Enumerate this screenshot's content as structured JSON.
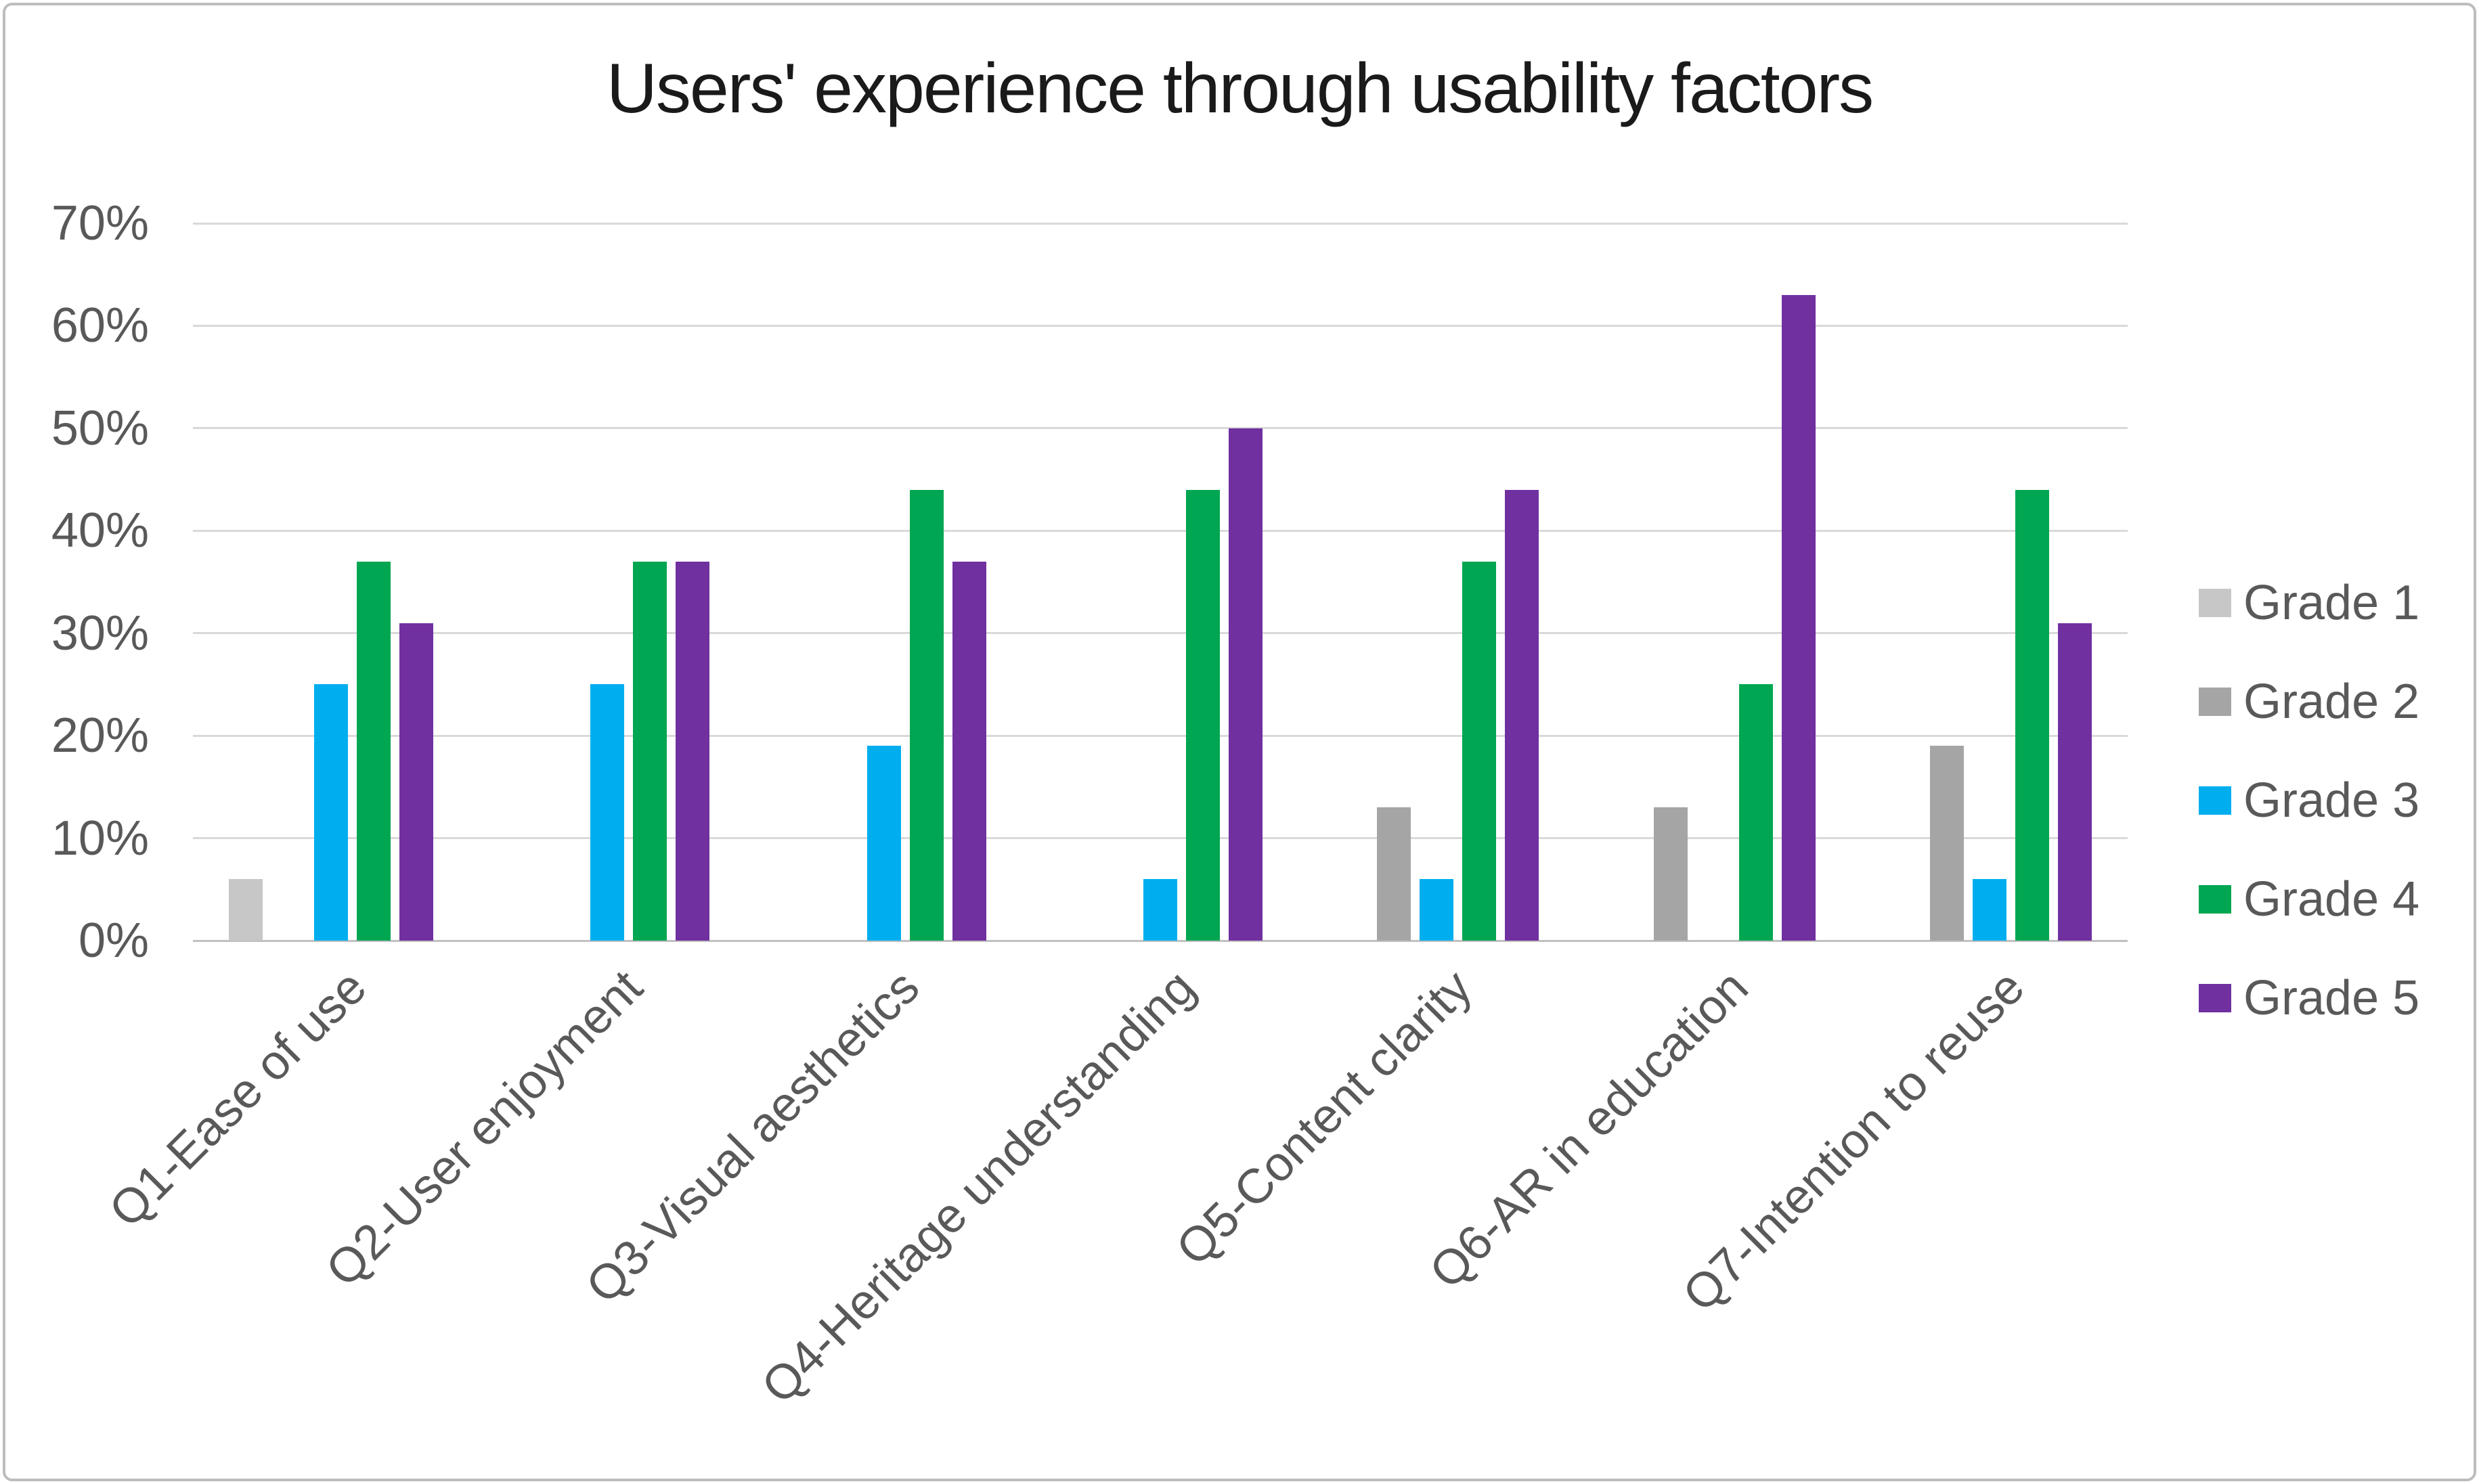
{
  "figure": {
    "background": "#ffffff",
    "border_color": "#bdbdbd"
  },
  "chart_data": {
    "type": "bar",
    "title": "Users' experience through usability factors",
    "categories": [
      "Q1-Ease of use",
      "Q2-User enjoyment",
      "Q3-Visual aesthetics",
      "Q4-Heritage understanding",
      "Q5-Content clarity",
      "Q6-AR in education",
      "Q7-Intention to reuse"
    ],
    "series": [
      {
        "name": "Grade 1",
        "color": "#c7c7c7",
        "values": [
          6,
          0,
          0,
          0,
          0,
          0,
          0
        ]
      },
      {
        "name": "Grade 2",
        "color": "#a5a5a5",
        "values": [
          0,
          0,
          0,
          0,
          13,
          13,
          19
        ]
      },
      {
        "name": "Grade 3",
        "color": "#00aeef",
        "values": [
          25,
          25,
          19,
          6,
          6,
          0,
          6
        ]
      },
      {
        "name": "Grade 4",
        "color": "#00a651",
        "values": [
          37,
          37,
          44,
          44,
          37,
          25,
          44
        ]
      },
      {
        "name": "Grade 5",
        "color": "#7030a0",
        "values": [
          31,
          37,
          37,
          50,
          44,
          63,
          31
        ]
      }
    ],
    "xlabel": "",
    "ylabel": "",
    "ylim": [
      0,
      70
    ],
    "ytick_step": 10,
    "ytick_labels": [
      "0%",
      "10%",
      "20%",
      "30%",
      "40%",
      "50%",
      "60%",
      "70%"
    ],
    "value_unit": "%",
    "grid": true,
    "legend_position": "right",
    "title_color": "#1a1a1a",
    "axis_text_color": "#595959",
    "gridline_color": "#d9d9d9",
    "axis_line_color": "#c0c0c0"
  }
}
